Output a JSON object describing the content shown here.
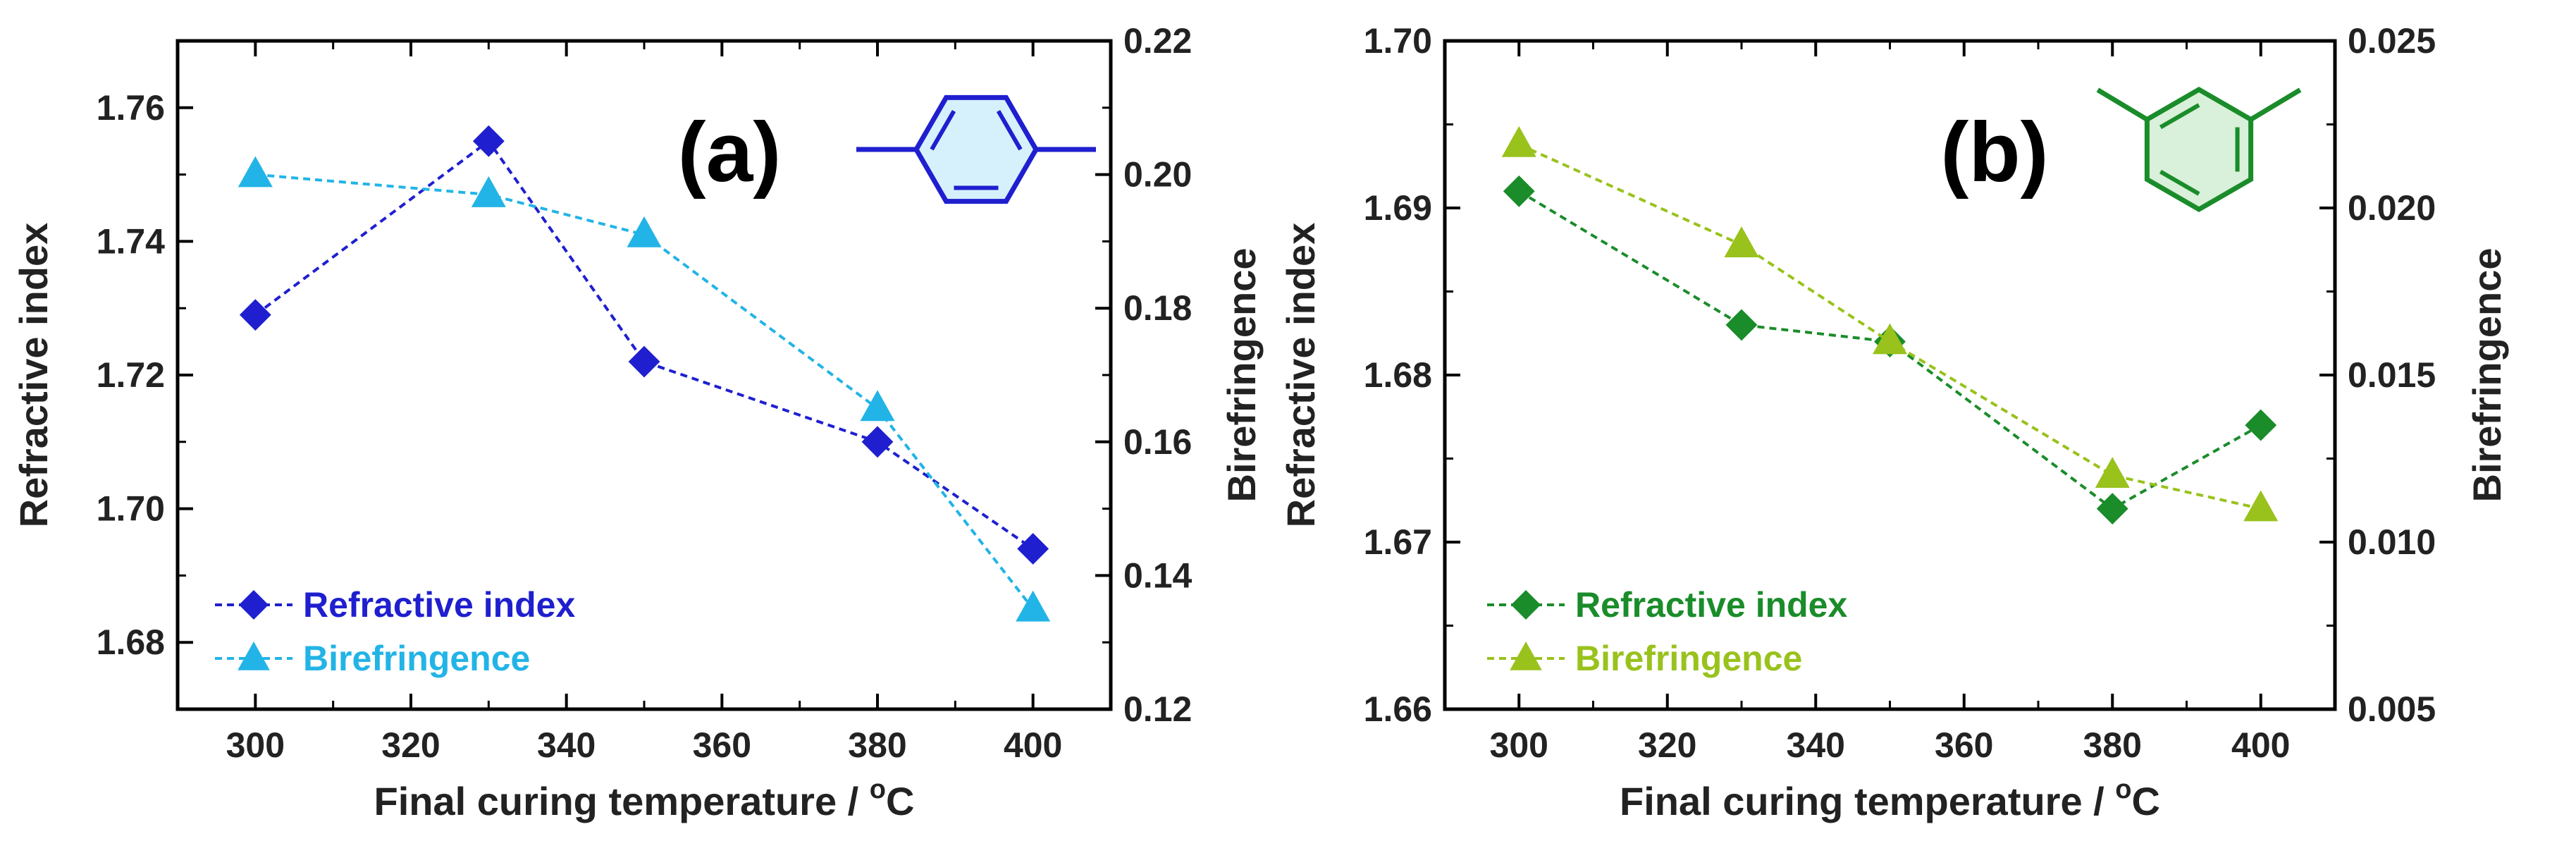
{
  "chart_data": [
    {
      "type": "line",
      "panel_label": "(a)",
      "structure_icon": "para-phenylene-icon",
      "colors": {
        "ri": "#1f1fcf",
        "bi": "#22b4e6",
        "icon_stroke": "#1f1fcf",
        "icon_fill": "#d6f1fb"
      },
      "x": [
        300,
        330,
        350,
        380,
        400
      ],
      "xlim": [
        290,
        410
      ],
      "x_ticks": [
        "300",
        "320",
        "340",
        "360",
        "380",
        "400"
      ],
      "xlabel_main": "Final curing temperature / ",
      "xlabel_sup": "o",
      "xlabel_unit": "C",
      "ylabel_left": "Refractive index",
      "ylabel_right": "Birefringence",
      "ylim_left": [
        1.67,
        1.77
      ],
      "ylim_right": [
        0.12,
        0.22
      ],
      "y_ticks_left": [
        "1.68",
        "1.70",
        "1.72",
        "1.74",
        "1.76"
      ],
      "y_ticks_right": [
        "0.12",
        "0.14",
        "0.16",
        "0.18",
        "0.20",
        "0.22"
      ],
      "series": [
        {
          "name": "Refractive index",
          "axis": "left",
          "marker": "diamond",
          "values": [
            1.729,
            1.755,
            1.722,
            1.71,
            1.694
          ]
        },
        {
          "name": "Birefringence",
          "axis": "right",
          "marker": "triangle",
          "values": [
            0.2,
            0.197,
            0.191,
            0.165,
            0.135
          ]
        }
      ]
    },
    {
      "type": "line",
      "panel_label": "(b)",
      "structure_icon": "meta-phenylene-icon",
      "colors": {
        "ri": "#1a8c2a",
        "bi": "#99c21c",
        "icon_stroke": "#1a8c2a",
        "icon_fill": "#d9f0da"
      },
      "x": [
        300,
        330,
        350,
        380,
        400
      ],
      "xlim": [
        290,
        410
      ],
      "x_ticks": [
        "300",
        "320",
        "340",
        "360",
        "380",
        "400"
      ],
      "xlabel_main": "Final curing temperature / ",
      "xlabel_sup": "o",
      "xlabel_unit": "C",
      "ylabel_left": "Refractive index",
      "ylabel_right": "Birefringence",
      "ylim_left": [
        1.66,
        1.7
      ],
      "ylim_right": [
        0.005,
        0.025
      ],
      "y_ticks_left": [
        "1.66",
        "1.67",
        "1.68",
        "1.69",
        "1.70"
      ],
      "y_ticks_right": [
        "0.005",
        "0.010",
        "0.015",
        "0.020",
        "0.025"
      ],
      "series": [
        {
          "name": "Refractive index",
          "axis": "left",
          "marker": "diamond",
          "values": [
            1.691,
            1.683,
            1.682,
            1.672,
            1.677
          ]
        },
        {
          "name": "Birefringence",
          "axis": "right",
          "marker": "triangle",
          "values": [
            0.0219,
            0.0189,
            0.016,
            0.012,
            0.011
          ]
        }
      ]
    }
  ]
}
